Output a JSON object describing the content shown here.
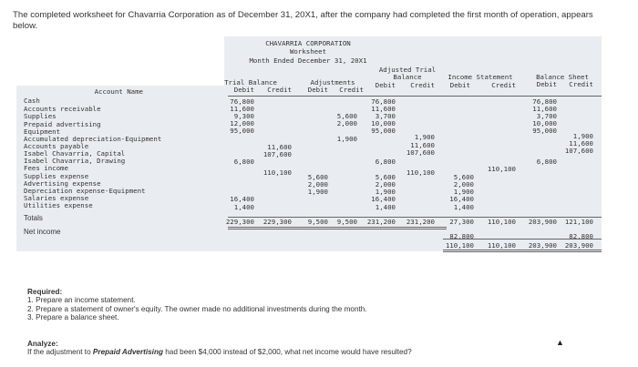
{
  "intro": "The completed worksheet for Chavarria Corporation as of December 31, 20X1, after the company had completed the first month of operation, appears below.",
  "worksheet": {
    "title1": "CHAVARRIA CORPORATION",
    "title2": "Worksheet",
    "title3": "Month Ended December 31, 20X1",
    "headers": {
      "account": "Account Name",
      "trial_balance": "Trial Balance",
      "adjustments": "Adjustments",
      "adjusted_trial_1": "Adjusted Trial",
      "adjusted_trial_2": "Balance",
      "income_statement": "Income Statement",
      "balance_sheet": "Balance Sheet",
      "debit": "Debit",
      "credit": "Credit"
    },
    "accounts": [
      "Cash",
      "Accounts receivable",
      "Supplies",
      "Prepaid advertising",
      "Equipment",
      "Accumulated depreciation-Equipment",
      "Accounts payable",
      "Isabel Chavarria, Capital",
      "Isabel Chavarria, Drawing",
      "Fees income",
      "Supplies expense",
      "Advertising expense",
      "Depreciation expense-Equipment",
      "Salaries expense",
      "Utilities expense",
      "Totals",
      "Net income"
    ],
    "values": {
      "tb_debit": [
        "76,800",
        "11,600",
        "9,300",
        "12,000",
        "95,000",
        "",
        "",
        "",
        "6,800",
        "",
        "",
        "",
        "",
        "16,400",
        "1,400",
        "229,300",
        ""
      ],
      "tb_credit": [
        "",
        "",
        "",
        "",
        "",
        "",
        "11,600",
        "107,600",
        "",
        "110,100",
        "",
        "",
        "",
        "",
        "",
        "229,300",
        ""
      ],
      "adj_debit": [
        "",
        "",
        "",
        "",
        "",
        "",
        "",
        "",
        "",
        "",
        "5,600",
        "2,000",
        "1,900",
        "",
        "",
        "9,500",
        ""
      ],
      "adj_credit": [
        "",
        "",
        "5,600",
        "2,000",
        "",
        "1,900",
        "",
        "",
        "",
        "",
        "",
        "",
        "",
        "",
        "",
        "9,500",
        ""
      ],
      "atb_debit": [
        "76,800",
        "11,600",
        "3,700",
        "10,000",
        "95,000",
        "",
        "",
        "",
        "6,800",
        "",
        "5,600",
        "2,000",
        "1,900",
        "16,400",
        "1,400",
        "231,200",
        ""
      ],
      "atb_credit": [
        "",
        "",
        "",
        "",
        "",
        "1,900",
        "11,600",
        "107,600",
        "",
        "110,100",
        "",
        "",
        "",
        "",
        "",
        "231,200",
        ""
      ],
      "is_debit": [
        "",
        "",
        "",
        "",
        "",
        "",
        "",
        "",
        "",
        "",
        "5,600",
        "2,000",
        "1,900",
        "16,400",
        "1,400",
        "27,300",
        "82,800"
      ],
      "is_credit": [
        "",
        "",
        "",
        "",
        "",
        "",
        "",
        "",
        "",
        "110,100",
        "",
        "",
        "",
        "",
        "",
        "110,100",
        ""
      ],
      "bs_debit": [
        "76,800",
        "11,600",
        "3,700",
        "10,000",
        "95,000",
        "",
        "",
        "",
        "6,800",
        "",
        "",
        "",
        "",
        "",
        "",
        "203,900",
        ""
      ],
      "bs_credit": [
        "",
        "",
        "",
        "",
        "",
        "1,900",
        "11,600",
        "107,600",
        "",
        "",
        "",
        "",
        "",
        "",
        "",
        "121,100",
        "82,800"
      ],
      "final_totals": [
        "110,100",
        "110,100",
        "203,900",
        "203,900"
      ]
    }
  },
  "required": {
    "heading": "Required:",
    "items": [
      "1. Prepare an income statement.",
      "2. Prepare a statement of owner's equity. The owner made no additional investments during the month.",
      "3. Prepare a balance sheet."
    ]
  },
  "analyze": {
    "heading": "Analyze:",
    "text_before": "If the adjustment to ",
    "text_bold": "Prepaid Advertising",
    "text_after": " had been $4,000 instead of $2,000, what net income would have resulted?"
  }
}
